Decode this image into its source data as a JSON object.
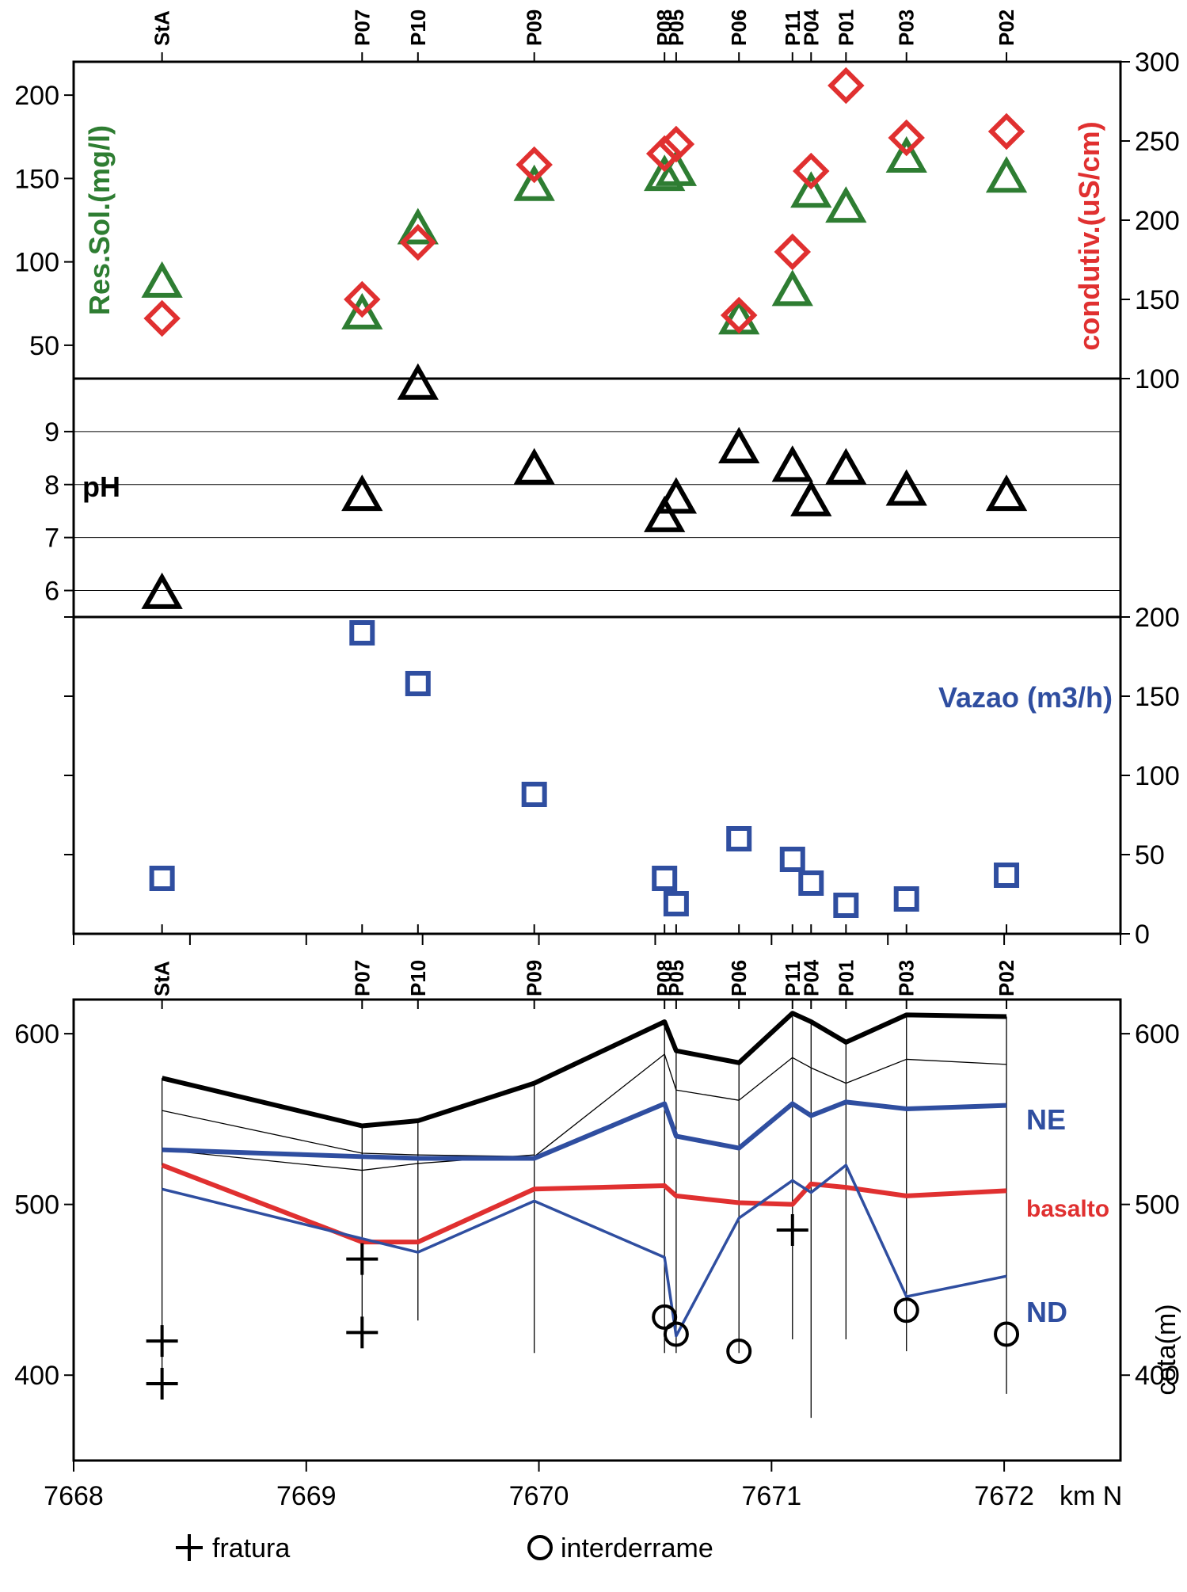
{
  "colors": {
    "green": "#2e7d32",
    "red": "#e03030",
    "blue": "#2f4ea0",
    "black": "#000000"
  },
  "wells": [
    {
      "name": "StA",
      "x": 7668.38
    },
    {
      "name": "P07",
      "x": 7669.24
    },
    {
      "name": "P10",
      "x": 7669.48
    },
    {
      "name": "P09",
      "x": 7669.98
    },
    {
      "name": "P08",
      "x": 7670.54
    },
    {
      "name": "P05",
      "x": 7670.59
    },
    {
      "name": "P06",
      "x": 7670.86
    },
    {
      "name": "P11",
      "x": 7671.09
    },
    {
      "name": "P04",
      "x": 7671.17
    },
    {
      "name": "P01",
      "x": 7671.32
    },
    {
      "name": "P03",
      "x": 7671.58
    },
    {
      "name": "P02",
      "x": 7672.01
    }
  ],
  "chart_data": [
    {
      "type": "scatter",
      "panel": "solids-conductivity",
      "xlim": [
        7668,
        7672.5
      ],
      "left_axis": {
        "label": "Res.Sol.(mg/l)",
        "ylim": [
          30,
          220
        ],
        "ticks": [
          "50",
          "100",
          "150",
          "200"
        ],
        "tick_values": [
          50,
          100,
          150,
          200
        ]
      },
      "right_axis": {
        "label": "condutiv.(uS/cm)",
        "ylim": [
          100,
          300
        ],
        "ticks": [
          "100",
          "150",
          "200",
          "250",
          "300"
        ],
        "tick_values": [
          100,
          150,
          200,
          250,
          300
        ]
      },
      "series": [
        {
          "name": "Res.Sol.(mg/l)",
          "marker": "triangle",
          "color": "green",
          "axis": "left",
          "points": [
            {
              "well": "StA",
              "x": 7668.38,
              "y": 88
            },
            {
              "well": "P07",
              "x": 7669.24,
              "y": 69
            },
            {
              "well": "P10",
              "x": 7669.48,
              "y": 120
            },
            {
              "well": "P09",
              "x": 7669.98,
              "y": 146
            },
            {
              "well": "P08",
              "x": 7670.54,
              "y": 152
            },
            {
              "well": "P05",
              "x": 7670.59,
              "y": 155
            },
            {
              "well": "P06",
              "x": 7670.86,
              "y": 66
            },
            {
              "well": "P11",
              "x": 7671.09,
              "y": 83
            },
            {
              "well": "P04",
              "x": 7671.17,
              "y": 142
            },
            {
              "well": "P01",
              "x": 7671.32,
              "y": 133
            },
            {
              "well": "P03",
              "x": 7671.58,
              "y": 163
            },
            {
              "well": "P02",
              "x": 7672.01,
              "y": 151
            }
          ]
        },
        {
          "name": "condutiv.(uS/cm)",
          "marker": "diamond",
          "color": "red",
          "axis": "right",
          "points": [
            {
              "well": "StA",
              "x": 7668.38,
              "y": 138
            },
            {
              "well": "P07",
              "x": 7669.24,
              "y": 150
            },
            {
              "well": "P10",
              "x": 7669.48,
              "y": 186
            },
            {
              "well": "P09",
              "x": 7669.98,
              "y": 235
            },
            {
              "well": "P08",
              "x": 7670.54,
              "y": 242
            },
            {
              "well": "P05",
              "x": 7670.59,
              "y": 248
            },
            {
              "well": "P06",
              "x": 7670.86,
              "y": 140
            },
            {
              "well": "P11",
              "x": 7671.09,
              "y": 180
            },
            {
              "well": "P04",
              "x": 7671.17,
              "y": 231
            },
            {
              "well": "P01",
              "x": 7671.32,
              "y": 285
            },
            {
              "well": "P03",
              "x": 7671.58,
              "y": 252
            },
            {
              "well": "P02",
              "x": 7672.01,
              "y": 256
            }
          ]
        }
      ]
    },
    {
      "type": "scatter",
      "panel": "ph",
      "xlim": [
        7668,
        7672.5
      ],
      "left_axis": {
        "label": "pH",
        "ylim": [
          5.5,
          10
        ],
        "ticks": [
          "6",
          "7",
          "8",
          "9"
        ],
        "tick_values": [
          6,
          7,
          8,
          9
        ]
      },
      "grid": true,
      "series": [
        {
          "name": "pH",
          "marker": "triangle",
          "color": "black",
          "axis": "left",
          "points": [
            {
              "well": "StA",
              "x": 7668.38,
              "y": 5.95
            },
            {
              "well": "P07",
              "x": 7669.24,
              "y": 7.8
            },
            {
              "well": "P10",
              "x": 7669.48,
              "y": 9.9
            },
            {
              "well": "P09",
              "x": 7669.98,
              "y": 8.3
            },
            {
              "well": "P08",
              "x": 7670.54,
              "y": 7.4
            },
            {
              "well": "P05",
              "x": 7670.59,
              "y": 7.75
            },
            {
              "well": "P06",
              "x": 7670.86,
              "y": 8.7
            },
            {
              "well": "P11",
              "x": 7671.09,
              "y": 8.35
            },
            {
              "well": "P04",
              "x": 7671.17,
              "y": 7.7
            },
            {
              "well": "P01",
              "x": 7671.32,
              "y": 8.3
            },
            {
              "well": "P03",
              "x": 7671.58,
              "y": 7.9
            },
            {
              "well": "P02",
              "x": 7672.01,
              "y": 7.8
            }
          ]
        }
      ]
    },
    {
      "type": "scatter",
      "panel": "flow",
      "xlim": [
        7668,
        7672.5
      ],
      "right_axis": {
        "label": "Vazao (m3/h)",
        "ylim": [
          0,
          200
        ],
        "ticks": [
          "0",
          "50",
          "100",
          "150",
          "200"
        ],
        "tick_values": [
          0,
          50,
          100,
          150,
          200
        ]
      },
      "series": [
        {
          "name": "Vazao (m3/h)",
          "marker": "square",
          "color": "blue",
          "axis": "right",
          "points": [
            {
              "well": "StA",
              "x": 7668.38,
              "y": 35
            },
            {
              "well": "P07",
              "x": 7669.24,
              "y": 190
            },
            {
              "well": "P10",
              "x": 7669.48,
              "y": 158
            },
            {
              "well": "P09",
              "x": 7669.98,
              "y": 88
            },
            {
              "well": "P08",
              "x": 7670.54,
              "y": 35
            },
            {
              "well": "P05",
              "x": 7670.59,
              "y": 19
            },
            {
              "well": "P06",
              "x": 7670.86,
              "y": 60
            },
            {
              "well": "P11",
              "x": 7671.09,
              "y": 47
            },
            {
              "well": "P04",
              "x": 7671.17,
              "y": 32
            },
            {
              "well": "P01",
              "x": 7671.32,
              "y": 18
            },
            {
              "well": "P03",
              "x": 7671.58,
              "y": 22
            },
            {
              "well": "P02",
              "x": 7672.01,
              "y": 37
            }
          ]
        }
      ]
    },
    {
      "type": "line",
      "panel": "cross-section",
      "xlabel": "km N",
      "xlim": [
        7668,
        7672.5
      ],
      "x_ticks": [
        "7668",
        "7669",
        "7670",
        "7671",
        "7672"
      ],
      "x_tick_values": [
        7668,
        7669,
        7670,
        7671,
        7672
      ],
      "ylabel": "cota(m)",
      "ylim": [
        350,
        620
      ],
      "y_ticks": [
        "400",
        "500",
        "600"
      ],
      "y_tick_values": [
        400,
        500,
        600
      ],
      "series": [
        {
          "name": "",
          "color": "black",
          "style": "surface",
          "x": [
            7668.38,
            7669.24,
            7669.48,
            7669.98,
            7670.54,
            7670.59,
            7670.86,
            7671.09,
            7671.17,
            7671.32,
            7671.58,
            7672.01
          ],
          "y": [
            574,
            546,
            549,
            571,
            607,
            590,
            583,
            612,
            607,
            595,
            611,
            610
          ]
        },
        {
          "name": "",
          "color": "black",
          "style": "thin",
          "x": [
            7668.38,
            7669.24,
            7669.48,
            7669.98,
            7670.54,
            7670.59,
            7670.86,
            7671.09,
            7671.17,
            7671.32,
            7671.58,
            7672.01
          ],
          "y": [
            555,
            530,
            529,
            528,
            588,
            567,
            561,
            586,
            580,
            571,
            585,
            582
          ]
        },
        {
          "name": "",
          "color": "black",
          "style": "thin",
          "x": [
            7668.38,
            7669.24,
            7669.48,
            7669.98
          ],
          "y": [
            532,
            520,
            524,
            529
          ]
        },
        {
          "name": "NE",
          "color": "blue",
          "style": "thick",
          "x": [
            7668.38,
            7669.24,
            7669.48,
            7669.98,
            7670.54,
            7670.59,
            7670.86,
            7671.09,
            7671.17,
            7671.32,
            7671.58,
            7672.01
          ],
          "y": [
            532,
            528,
            527,
            527,
            559,
            540,
            533,
            559,
            552,
            560,
            556,
            558
          ]
        },
        {
          "name": "basalto",
          "color": "red",
          "style": "thick",
          "x": [
            7668.38,
            7669.24,
            7669.48,
            7669.98,
            7670.54,
            7670.59,
            7670.86,
            7671.09,
            7671.17,
            7671.32,
            7671.58,
            7672.01
          ],
          "y": [
            523,
            478,
            478,
            509,
            511,
            505,
            501,
            500,
            512,
            510,
            505,
            508
          ]
        },
        {
          "name": "ND",
          "color": "blue",
          "style": "medium",
          "x": [
            7668.38,
            7669.24,
            7669.48,
            7669.98,
            7670.54,
            7670.59,
            7670.86,
            7671.09,
            7671.17,
            7671.32,
            7671.58,
            7672.01
          ],
          "y": [
            509,
            480,
            472,
            502,
            469,
            423,
            492,
            514,
            507,
            523,
            446,
            458
          ]
        }
      ],
      "well_bottoms": [
        {
          "well": "StA",
          "y": 395
        },
        {
          "well": "P07",
          "y": 420
        },
        {
          "well": "P10",
          "y": 432
        },
        {
          "well": "P09",
          "y": 413
        },
        {
          "well": "P08",
          "y": 413
        },
        {
          "well": "P05",
          "y": 413
        },
        {
          "well": "P06",
          "y": 413
        },
        {
          "well": "P11",
          "y": 421
        },
        {
          "well": "P04",
          "y": 375
        },
        {
          "well": "P01",
          "y": 421
        },
        {
          "well": "P03",
          "y": 414
        },
        {
          "well": "P02",
          "y": 389
        }
      ],
      "fractures": [
        {
          "x": 7668.38,
          "y": 420
        },
        {
          "x": 7668.38,
          "y": 395
        },
        {
          "x": 7669.24,
          "y": 468
        },
        {
          "x": 7669.24,
          "y": 425
        },
        {
          "x": 7671.09,
          "y": 485
        }
      ],
      "interflows": [
        {
          "x": 7670.54,
          "y": 434
        },
        {
          "x": 7670.59,
          "y": 424
        },
        {
          "x": 7670.86,
          "y": 414
        },
        {
          "x": 7671.58,
          "y": 438
        },
        {
          "x": 7672.01,
          "y": 424
        }
      ]
    }
  ],
  "labels": {
    "res_sol": "Res.Sol.(mg/l)",
    "condutiv": "condutiv.(uS/cm)",
    "ph": "pH",
    "vazao": "Vazao (m3/h)",
    "ne": "NE",
    "basalto": "basalto",
    "nd": "ND",
    "cota": "cota(m)",
    "km_n": "km N"
  },
  "legend": {
    "fratura": "fratura",
    "interderrame": "interderrame"
  }
}
